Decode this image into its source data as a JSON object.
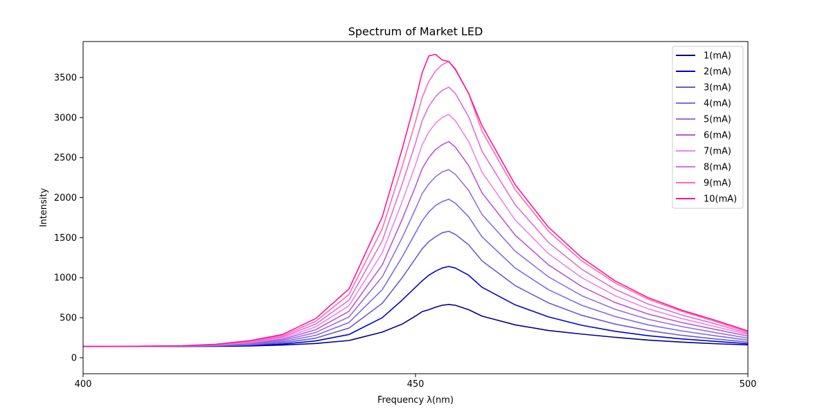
{
  "chart_data": {
    "type": "line",
    "title": "Spectrum of Market LED",
    "xlabel": "Frequency λ(nm)",
    "ylabel": "Intensity",
    "xlim": [
      400,
      500
    ],
    "ylim": [
      -200,
      3950
    ],
    "xticks": [
      400,
      450,
      500
    ],
    "yticks": [
      0,
      500,
      1000,
      1500,
      2000,
      2500,
      3000,
      3500
    ],
    "grid": false,
    "legend_position": "top-right",
    "x": [
      400,
      405,
      410,
      415,
      420,
      425,
      430,
      435,
      440,
      445,
      448,
      450,
      451,
      452,
      453,
      454,
      455,
      456,
      458,
      460,
      465,
      470,
      475,
      480,
      485,
      490,
      495,
      500
    ],
    "series": [
      {
        "name": "1(mA)",
        "color": "#00008b",
        "values": [
          140,
          140,
          140,
          141,
          142,
          146,
          158,
          178,
          215,
          320,
          420,
          520,
          575,
          600,
          630,
          655,
          665,
          655,
          600,
          520,
          410,
          340,
          295,
          255,
          220,
          195,
          175,
          160
        ]
      },
      {
        "name": "2(mA)",
        "color": "#0000cd",
        "values": [
          140,
          140,
          141,
          142,
          145,
          152,
          170,
          210,
          290,
          500,
          720,
          880,
          960,
          1030,
          1080,
          1120,
          1140,
          1120,
          1030,
          880,
          660,
          510,
          405,
          330,
          275,
          235,
          205,
          175
        ]
      },
      {
        "name": "3(mA)",
        "color": "#6a5acd",
        "values": [
          140,
          140,
          141,
          143,
          148,
          158,
          185,
          245,
          370,
          680,
          1000,
          1240,
          1360,
          1450,
          1510,
          1560,
          1580,
          1540,
          1410,
          1210,
          900,
          685,
          530,
          420,
          340,
          280,
          235,
          195
        ]
      },
      {
        "name": "4(mA)",
        "color": "#7b68ee",
        "values": [
          140,
          140,
          142,
          144,
          150,
          165,
          200,
          280,
          440,
          850,
          1260,
          1560,
          1710,
          1820,
          1900,
          1950,
          1980,
          1930,
          1760,
          1510,
          1120,
          850,
          655,
          515,
          410,
          335,
          275,
          220
        ]
      },
      {
        "name": "5(mA)",
        "color": "#9370db",
        "values": [
          140,
          141,
          142,
          145,
          153,
          172,
          215,
          315,
          510,
          1010,
          1500,
          1860,
          2050,
          2170,
          2260,
          2320,
          2350,
          2290,
          2090,
          1790,
          1330,
          1010,
          775,
          605,
          480,
          390,
          315,
          245
        ]
      },
      {
        "name": "6(mA)",
        "color": "#ba55d3",
        "values": [
          140,
          141,
          143,
          146,
          156,
          180,
          230,
          350,
          580,
          1160,
          1730,
          2140,
          2360,
          2500,
          2600,
          2660,
          2700,
          2630,
          2400,
          2060,
          1530,
          1160,
          890,
          690,
          545,
          440,
          355,
          270
        ]
      },
      {
        "name": "7(mA)",
        "color": "#ee82ee",
        "values": [
          140,
          141,
          143,
          147,
          159,
          188,
          245,
          385,
          650,
          1310,
          1950,
          2410,
          2660,
          2820,
          2930,
          3000,
          3040,
          2960,
          2700,
          2320,
          1720,
          1300,
          1000,
          775,
          610,
          490,
          390,
          290
        ]
      },
      {
        "name": "8(mA)",
        "color": "#da70d6",
        "values": [
          140,
          141,
          144,
          148,
          162,
          196,
          260,
          420,
          720,
          1460,
          2170,
          2680,
          2960,
          3140,
          3260,
          3340,
          3380,
          3300,
          3010,
          2580,
          1910,
          1440,
          1105,
          855,
          670,
          535,
          425,
          305
        ]
      },
      {
        "name": "9(mA)",
        "color": "#ff69b4",
        "values": [
          140,
          141,
          144,
          149,
          165,
          204,
          275,
          455,
          790,
          1610,
          2390,
          2950,
          3250,
          3450,
          3580,
          3660,
          3700,
          3610,
          3300,
          2830,
          2100,
          1580,
          1210,
          935,
          730,
          580,
          455,
          320
        ]
      },
      {
        "name": "10(mA)",
        "color": "#ff1493",
        "values": [
          140,
          141,
          145,
          150,
          168,
          212,
          290,
          490,
          860,
          1760,
          2610,
          3220,
          3560,
          3770,
          3790,
          3720,
          3700,
          3600,
          3300,
          2900,
          2160,
          1630,
          1250,
          960,
          750,
          595,
          470,
          335
        ]
      }
    ]
  }
}
